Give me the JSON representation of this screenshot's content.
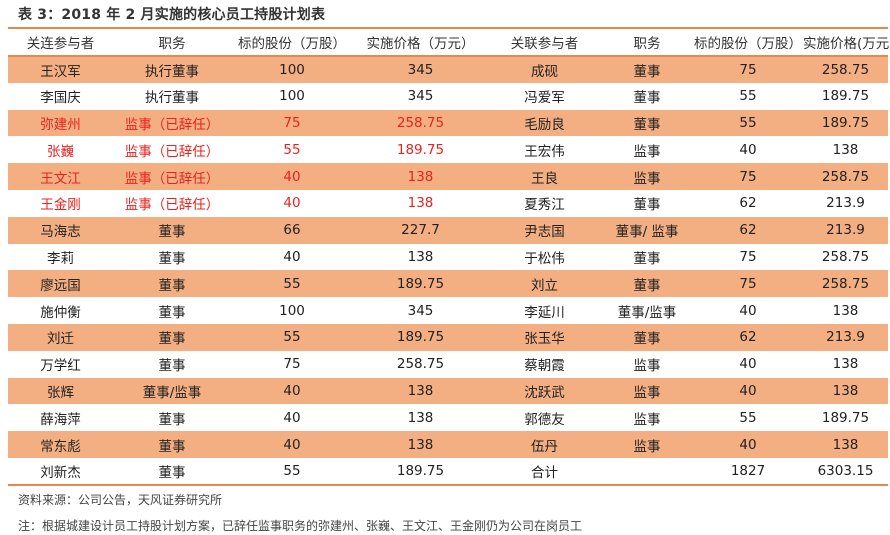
{
  "title": "表 3：2018 年 2 月实施的核心员工持股计划表",
  "colors": {
    "accent_border": "#E5884A",
    "row_shade": "#F3AF82",
    "resigned_text": "#E8231E"
  },
  "table": {
    "headers": [
      "关连参与者",
      "职务",
      "标的股份（万股）",
      "实施价格（万元）",
      "关联参与者",
      "职务",
      "标的股份（万股）",
      "实施价格(万元)"
    ],
    "rows": [
      {
        "left": {
          "name": "王汉军",
          "role": "执行董事",
          "shares": "100",
          "price": "345",
          "resigned": false
        },
        "right": {
          "name": "成砚",
          "role": "董事",
          "shares": "75",
          "price": "258.75"
        }
      },
      {
        "left": {
          "name": "李国庆",
          "role": "执行董事",
          "shares": "100",
          "price": "345",
          "resigned": false
        },
        "right": {
          "name": "冯爱军",
          "role": "董事",
          "shares": "55",
          "price": "189.75"
        }
      },
      {
        "left": {
          "name": "弥建州",
          "role": "监事（已辞任）",
          "shares": "75",
          "price": "258.75",
          "resigned": true
        },
        "right": {
          "name": "毛励良",
          "role": "董事",
          "shares": "55",
          "price": "189.75"
        }
      },
      {
        "left": {
          "name": "张巍",
          "role": "监事（已辞任）",
          "shares": "55",
          "price": "189.75",
          "resigned": true
        },
        "right": {
          "name": "王宏伟",
          "role": "监事",
          "shares": "40",
          "price": "138"
        }
      },
      {
        "left": {
          "name": "王文江",
          "role": "监事（已辞任）",
          "shares": "40",
          "price": "138",
          "resigned": true
        },
        "right": {
          "name": "王良",
          "role": "监事",
          "shares": "75",
          "price": "258.75"
        }
      },
      {
        "left": {
          "name": "王金刚",
          "role": "监事（已辞任）",
          "shares": "40",
          "price": "138",
          "resigned": true
        },
        "right": {
          "name": "夏秀江",
          "role": "董事",
          "shares": "62",
          "price": "213.9"
        }
      },
      {
        "left": {
          "name": "马海志",
          "role": "董事",
          "shares": "66",
          "price": "227.7",
          "resigned": false
        },
        "right": {
          "name": "尹志国",
          "role": "董事/ 监事",
          "shares": "62",
          "price": "213.9"
        }
      },
      {
        "left": {
          "name": "李莉",
          "role": "董事",
          "shares": "40",
          "price": "138",
          "resigned": false
        },
        "right": {
          "name": "于松伟",
          "role": "董事",
          "shares": "75",
          "price": "258.75"
        }
      },
      {
        "left": {
          "name": "廖远国",
          "role": "董事",
          "shares": "55",
          "price": "189.75",
          "resigned": false
        },
        "right": {
          "name": "刘立",
          "role": "董事",
          "shares": "75",
          "price": "258.75"
        }
      },
      {
        "left": {
          "name": "施仲衡",
          "role": "董事",
          "shares": "100",
          "price": "345",
          "resigned": false
        },
        "right": {
          "name": "李延川",
          "role": "董事/监事",
          "shares": "40",
          "price": "138"
        }
      },
      {
        "left": {
          "name": "刘迁",
          "role": "董事",
          "shares": "55",
          "price": "189.75",
          "resigned": false
        },
        "right": {
          "name": "张玉华",
          "role": "董事",
          "shares": "62",
          "price": "213.9"
        }
      },
      {
        "left": {
          "name": "万学红",
          "role": "董事",
          "shares": "75",
          "price": "258.75",
          "resigned": false
        },
        "right": {
          "name": "蔡朝霞",
          "role": "监事",
          "shares": "40",
          "price": "138"
        }
      },
      {
        "left": {
          "name": "张辉",
          "role": "董事/监事",
          "shares": "40",
          "price": "138",
          "resigned": false
        },
        "right": {
          "name": "沈跃武",
          "role": "监事",
          "shares": "40",
          "price": "138"
        }
      },
      {
        "left": {
          "name": "薛海萍",
          "role": "董事",
          "shares": "40",
          "price": "138",
          "resigned": false
        },
        "right": {
          "name": "郭德友",
          "role": "监事",
          "shares": "55",
          "price": "189.75"
        }
      },
      {
        "left": {
          "name": "常东彪",
          "role": "董事",
          "shares": "40",
          "price": "138",
          "resigned": false
        },
        "right": {
          "name": "伍丹",
          "role": "监事",
          "shares": "40",
          "price": "138"
        }
      },
      {
        "left": {
          "name": "刘新杰",
          "role": "董事",
          "shares": "55",
          "price": "189.75",
          "resigned": false
        },
        "right": {
          "name": "合计",
          "role": "",
          "shares": "1827",
          "price": "6303.15"
        }
      }
    ]
  },
  "source": "资料来源：公司公告，天风证券研究所",
  "note": "注：根据城建设计员工持股计划方案，已辞任监事职务的弥建州、张巍、王文江、王金刚仍为公司在岗员工"
}
